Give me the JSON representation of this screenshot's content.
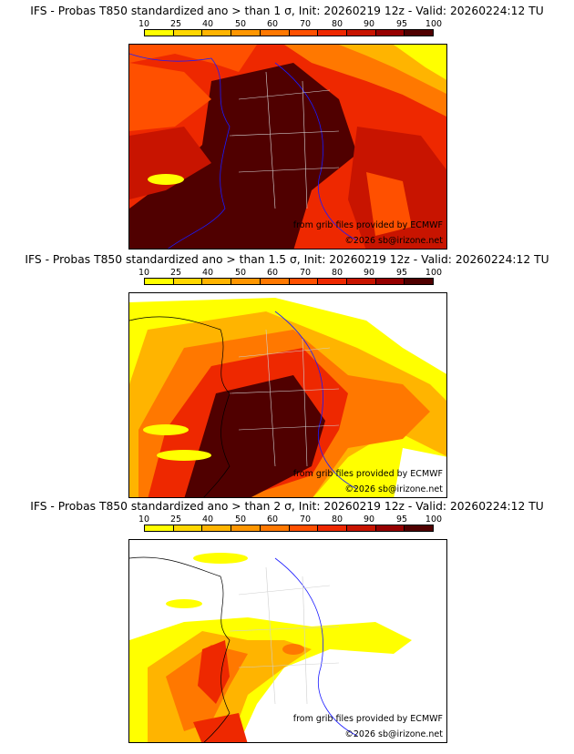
{
  "legend": {
    "ticks": [
      "10",
      "25",
      "40",
      "50",
      "60",
      "70",
      "80",
      "90",
      "95",
      "100"
    ],
    "colors": [
      "#ffff00",
      "#ffd700",
      "#ffb400",
      "#ff9600",
      "#ff7800",
      "#ff5000",
      "#ee2800",
      "#c81400",
      "#960000",
      "#500000"
    ]
  },
  "panels": [
    {
      "title": "IFS - Probas T850  standardized ano > than 1 σ, Init: 20260219 12z - Valid: 20260224:12 TU",
      "source_credit": "from grib files provided by ECMWF",
      "copyright": "©2026 sb@irizone.net"
    },
    {
      "title": "IFS - Probas T850  standardized ano > than 1.5 σ, Init: 20260219 12z - Valid: 20260224:12 TU",
      "source_credit": "from grib files provided by ECMWF",
      "copyright": "©2026 sb@irizone.net"
    },
    {
      "title": "IFS - Probas T850  standardized ano > than 2 σ, Init: 20260219 12z - Valid: 20260224:12 TU",
      "source_credit": "from grib files provided by ECMWF",
      "copyright": "©2026 sb@irizone.net"
    }
  ]
}
